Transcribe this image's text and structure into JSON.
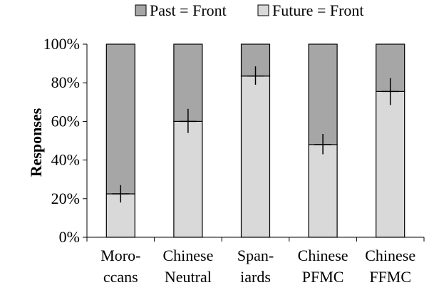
{
  "chart_data": {
    "type": "bar",
    "stacked": true,
    "title": "",
    "xlabel": "",
    "ylabel": "Responses",
    "ylim": [
      0,
      100
    ],
    "yticks": [
      "0%",
      "20%",
      "40%",
      "60%",
      "80%",
      "100%"
    ],
    "categories": [
      [
        "Moro-",
        "ccans"
      ],
      [
        "Chinese",
        "Neutral"
      ],
      [
        "Span-",
        "iards"
      ],
      [
        "Chinese",
        "PFMC"
      ],
      [
        "Chinese",
        "FFMC"
      ]
    ],
    "series": [
      {
        "name": "Future = Front",
        "color": "#d9d9d9",
        "values": [
          22.5,
          60,
          83.5,
          48,
          75.5
        ]
      },
      {
        "name": "Past = Front",
        "color": "#a6a6a6",
        "values": [
          77.5,
          40,
          16.5,
          52,
          24.5
        ]
      }
    ],
    "error_bars": [
      {
        "center": 22.5,
        "low": 18,
        "high": 27
      },
      {
        "center": 60,
        "low": 54,
        "high": 66.5
      },
      {
        "center": 83.5,
        "low": 79,
        "high": 88.5
      },
      {
        "center": 48,
        "low": 43,
        "high": 53.5
      },
      {
        "center": 75.5,
        "low": 68.5,
        "high": 82.5
      }
    ],
    "legend": {
      "placement": "top",
      "order": [
        "Past = Front",
        "Future = Front"
      ]
    },
    "grid": false
  }
}
